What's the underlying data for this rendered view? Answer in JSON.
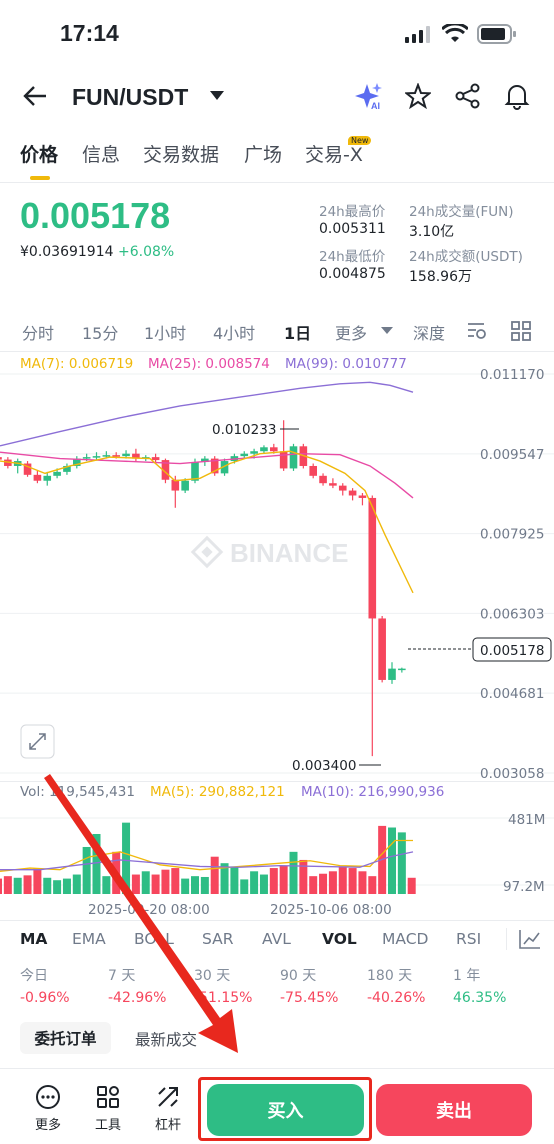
{
  "status_bar": {
    "time": "17:14"
  },
  "header": {
    "pair": "FUN/USDT"
  },
  "tabs": [
    {
      "label": "价格",
      "active": true
    },
    {
      "label": "信息"
    },
    {
      "label": "交易数据"
    },
    {
      "label": "广场"
    },
    {
      "label": "交易-X",
      "badge": "New"
    }
  ],
  "ticker": {
    "last_price": "0.005178",
    "fiat_price": "¥0.03691914",
    "change": "+6.08%",
    "high_label": "24h最高价",
    "high": "0.005311",
    "low_label": "24h最低价",
    "low": "0.004875",
    "vol_base_label": "24h成交量(FUN)",
    "vol_base": "3.10亿",
    "vol_quote_label": "24h成交额(USDT)",
    "vol_quote": "158.96万"
  },
  "timeframes": [
    "分时",
    "15分",
    "1小时",
    "4小时",
    "1日",
    "更多",
    "深度"
  ],
  "active_timeframe": "1日",
  "chart_data": {
    "type": "candlestick",
    "ma_legend": {
      "ma7": "MA(7): 0.006719",
      "ma25": "MA(25): 0.008574",
      "ma99": "MA(99): 0.010777"
    },
    "y_ticks": [
      "0.011170",
      "0.009547",
      "0.007925",
      "0.006303",
      "0.004681",
      "0.003058"
    ],
    "current_price_label": "0.005178",
    "high_marker": "0.010233",
    "low_marker": "0.003400",
    "watermark": "BINANCE",
    "colors": {
      "up": "#2ebd85",
      "down": "#f6465d",
      "ma7": "#f0b90b",
      "ma25": "#e84ba5",
      "ma99": "#8b6fd6"
    },
    "volume_legend": {
      "vol": "Vol: 119,545,431",
      "ma5": "MA(5): 290,882,121",
      "ma10": "MA(10): 216,990,936"
    },
    "volume_ticks": [
      "481M",
      "97.2M"
    ],
    "x_labels": [
      "2025-09-20 08:00",
      "2025-10-06 08:00"
    ]
  },
  "indicators": [
    "MA",
    "EMA",
    "BOLL",
    "SAR",
    "AVL",
    "VOL",
    "MACD",
    "RSI"
  ],
  "performance": [
    {
      "label": "今日",
      "value": "-0.96%"
    },
    {
      "label": "7 天",
      "value": "-42.96%"
    },
    {
      "label": "30 天",
      "value": "-51.15%"
    },
    {
      "label": "90 天",
      "value": "-75.45%"
    },
    {
      "label": "180 天",
      "value": "-40.26%"
    },
    {
      "label": "1 年",
      "value": "46.35%"
    }
  ],
  "order_tabs": [
    "委托订单",
    "最新成交"
  ],
  "bottom_bar": {
    "more": "更多",
    "tools": "工具",
    "margin": "杠杆",
    "buy": "买入",
    "sell": "卖出"
  }
}
